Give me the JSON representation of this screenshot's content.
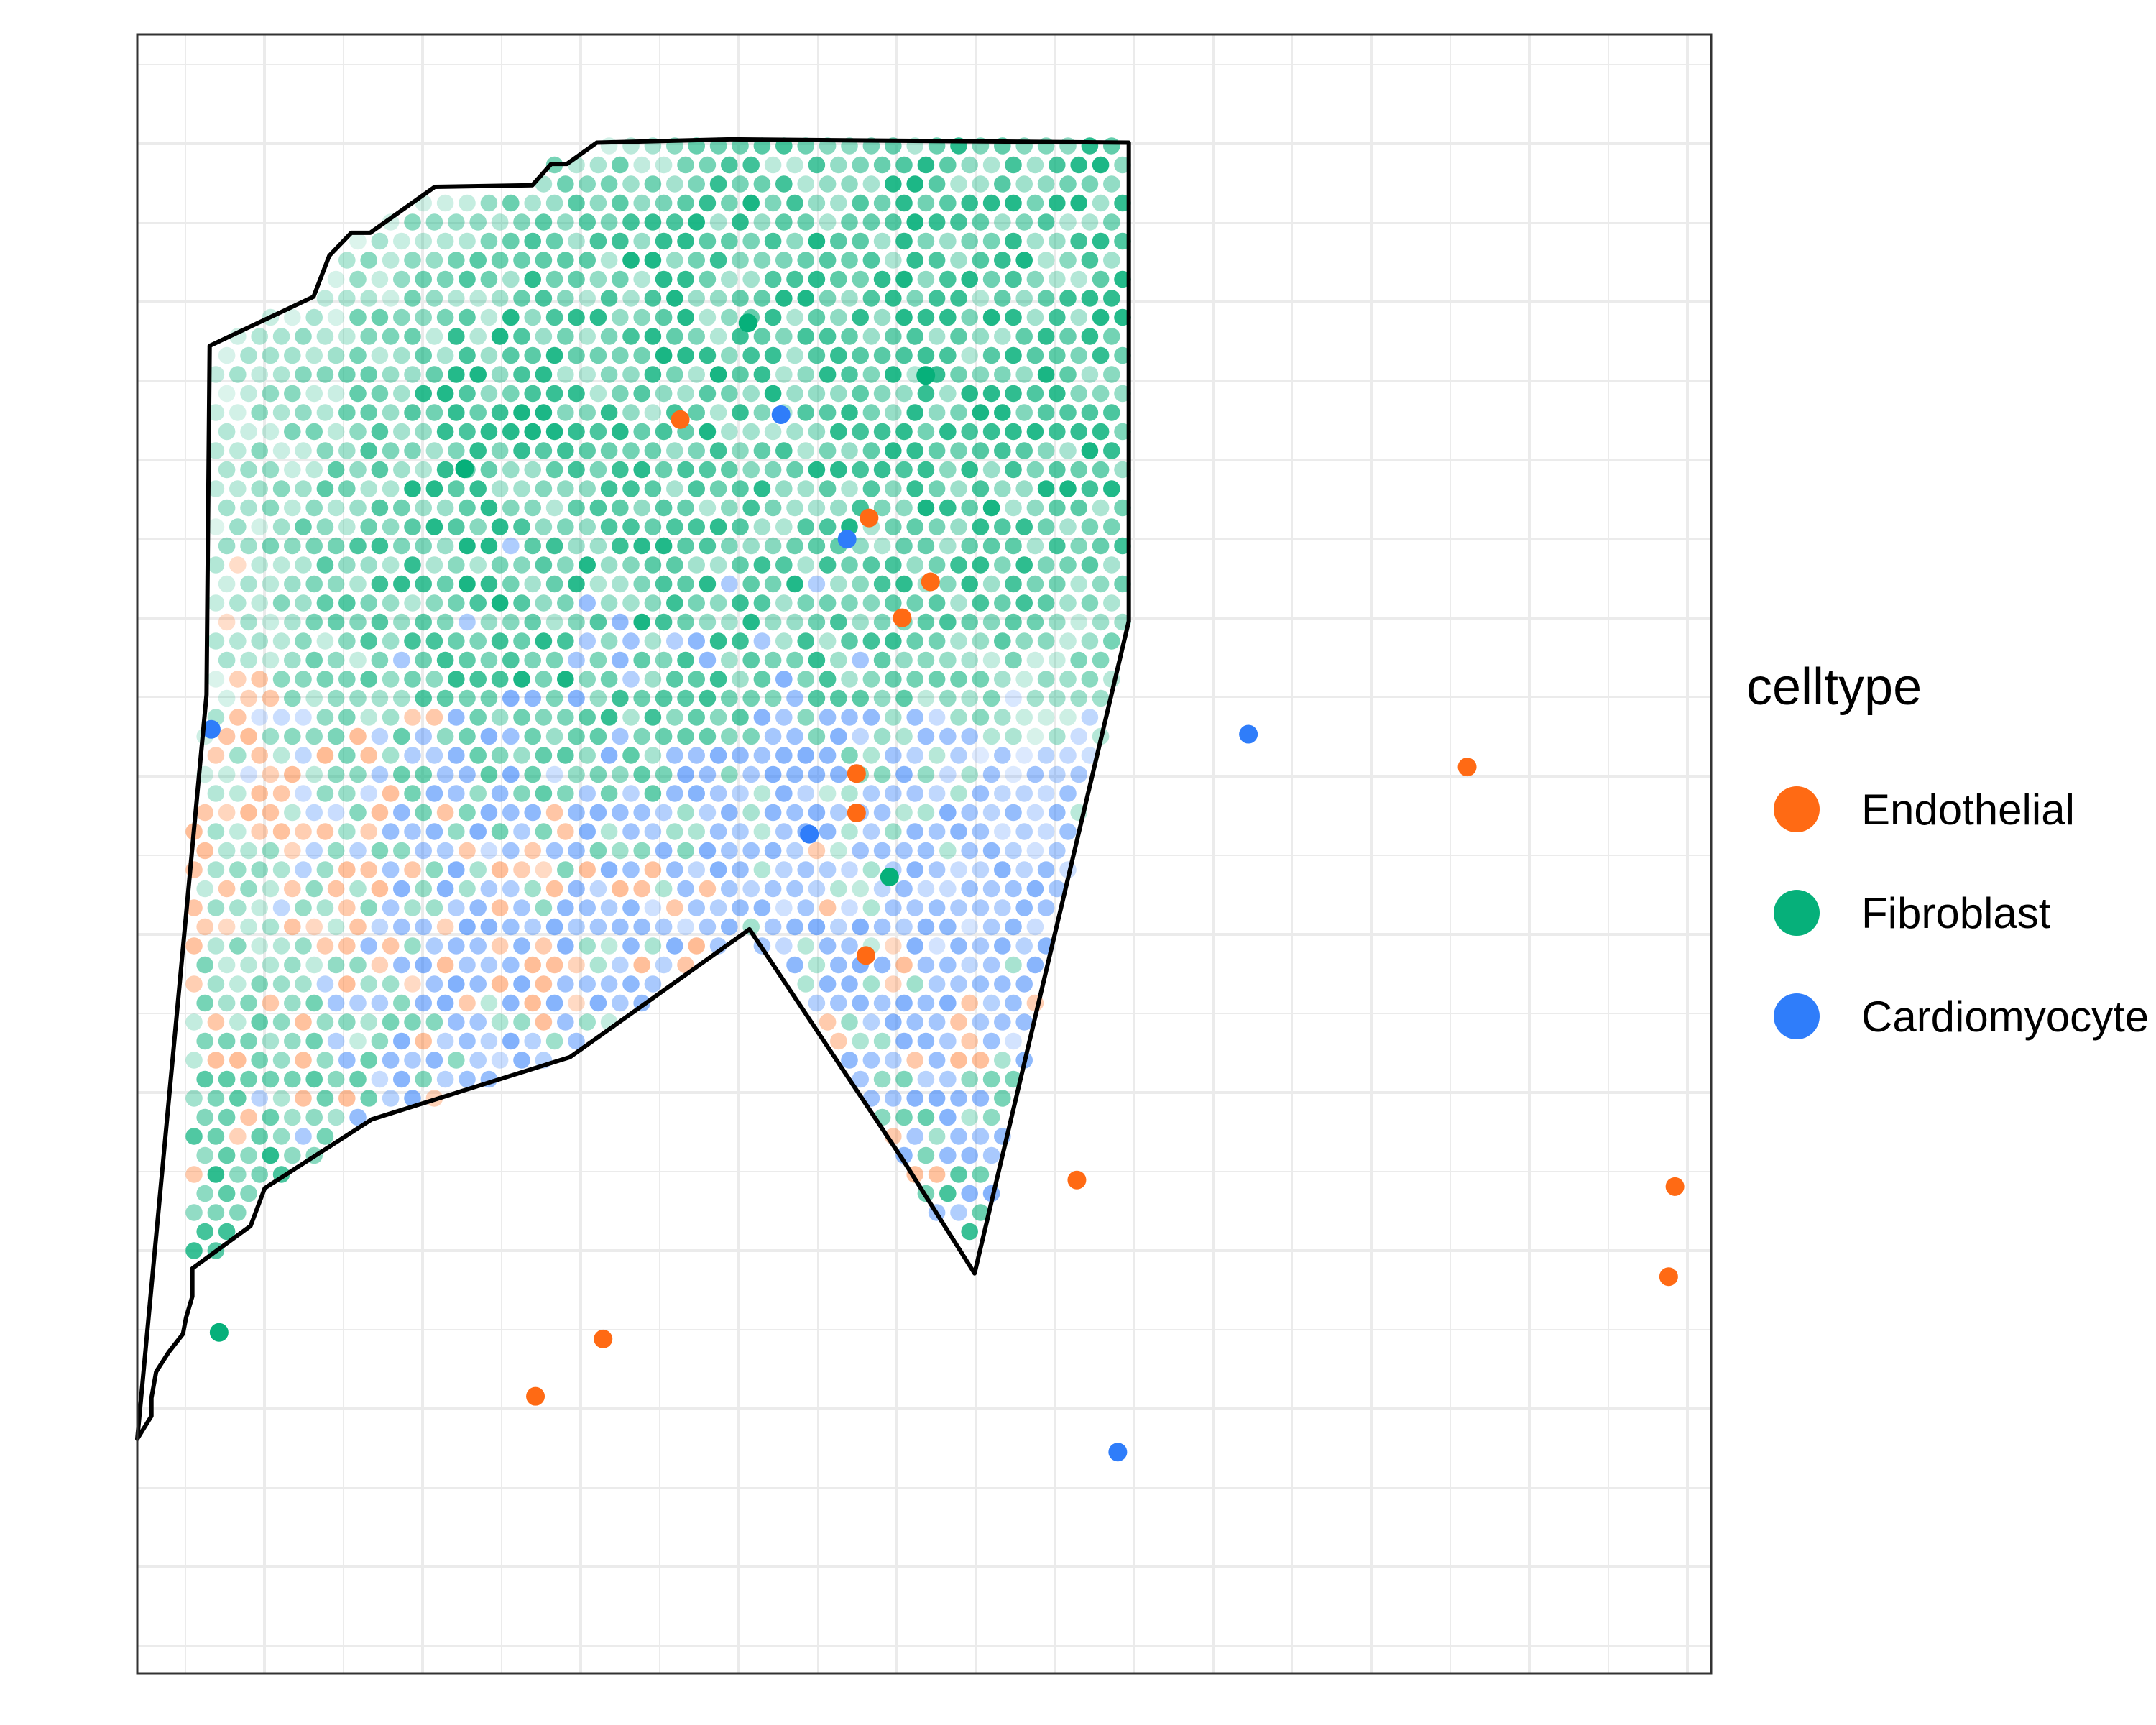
{
  "chart_data": {
    "type": "scatter",
    "title": "",
    "xlabel": "",
    "ylabel": "",
    "xlim": [
      0,
      100
    ],
    "ylim": [
      0,
      100
    ],
    "grid": true,
    "axis_text": false,
    "legend_position": "right",
    "legend": {
      "title": "celltype",
      "entries": [
        {
          "label": "Endothelial",
          "color": "#FF6A14"
        },
        {
          "label": "Fibroblast",
          "color": "#06B07A"
        },
        {
          "label": "Cardiomyocyte",
          "color": "#2F7DFA"
        }
      ]
    },
    "tissue_outline": [
      [
        4.4,
        40.3
      ],
      [
        4.6,
        19.0
      ],
      [
        11.2,
        16.0
      ],
      [
        12.2,
        13.5
      ],
      [
        13.6,
        12.1
      ],
      [
        14.8,
        12.1
      ],
      [
        18.9,
        9.3
      ],
      [
        25.1,
        9.2
      ],
      [
        26.3,
        7.9
      ],
      [
        27.3,
        7.9
      ],
      [
        29.2,
        6.6
      ],
      [
        37.7,
        6.4
      ],
      [
        63.0,
        6.6
      ],
      [
        63.0,
        35.8
      ],
      [
        53.2,
        75.6
      ],
      [
        48.6,
        68.6
      ],
      [
        38.9,
        54.6
      ],
      [
        27.5,
        62.4
      ],
      [
        14.9,
        66.2
      ],
      [
        8.1,
        70.4
      ],
      [
        7.2,
        72.7
      ],
      [
        3.5,
        75.3
      ],
      [
        3.5,
        77.0
      ],
      [
        3.1,
        78.3
      ],
      [
        2.9,
        79.3
      ],
      [
        2.0,
        80.4
      ],
      [
        1.2,
        81.6
      ],
      [
        0.9,
        83.2
      ],
      [
        0.9,
        84.3
      ],
      [
        0.0,
        85.7
      ]
    ],
    "density": {
      "Fibroblast": {
        "centers": [
          [
            75,
            85
          ],
          [
            48,
            80
          ],
          [
            25,
            70
          ],
          [
            55,
            20
          ],
          [
            5,
            25
          ],
          [
            92,
            10
          ]
        ],
        "alpha_max": 0.85
      },
      "Cardiomyocyte": {
        "centers": [
          [
            30,
            55
          ],
          [
            40,
            35
          ],
          [
            70,
            35
          ],
          [
            25,
            20
          ],
          [
            85,
            30
          ],
          [
            60,
            10
          ]
        ],
        "alpha_max": 0.55
      },
      "Endothelial": {
        "centers": [
          [
            15,
            25
          ],
          [
            30,
            15
          ],
          [
            45,
            35
          ],
          [
            90,
            30
          ],
          [
            8,
            50
          ]
        ],
        "alpha_max": 0.45
      }
    },
    "highlighted_spots": [
      {
        "celltype": "Endothelial",
        "x": 34.5,
        "y": 76.5
      },
      {
        "celltype": "Endothelial",
        "x": 46.5,
        "y": 70.5
      },
      {
        "celltype": "Endothelial",
        "x": 50.4,
        "y": 66.6
      },
      {
        "celltype": "Endothelial",
        "x": 48.6,
        "y": 64.4
      },
      {
        "celltype": "Endothelial",
        "x": 84.5,
        "y": 55.3
      },
      {
        "celltype": "Endothelial",
        "x": 46.3,
        "y": 43.8
      },
      {
        "celltype": "Endothelial",
        "x": 29.6,
        "y": 20.4
      },
      {
        "celltype": "Endothelial",
        "x": 25.3,
        "y": 16.9
      },
      {
        "celltype": "Endothelial",
        "x": 59.7,
        "y": 30.1
      },
      {
        "celltype": "Endothelial",
        "x": 97.7,
        "y": 29.7
      },
      {
        "celltype": "Endothelial",
        "x": 97.3,
        "y": 24.2
      },
      {
        "celltype": "Endothelial",
        "x": 45.7,
        "y": 52.5
      },
      {
        "celltype": "Endothelial",
        "x": 45.7,
        "y": 54.9
      },
      {
        "celltype": "Fibroblast",
        "x": 38.8,
        "y": 82.4
      },
      {
        "celltype": "Fibroblast",
        "x": 50.1,
        "y": 79.2
      },
      {
        "celltype": "Fibroblast",
        "x": 20.8,
        "y": 73.5
      },
      {
        "celltype": "Fibroblast",
        "x": 47.8,
        "y": 48.6
      },
      {
        "celltype": "Fibroblast",
        "x": 5.2,
        "y": 20.8
      },
      {
        "celltype": "Cardiomyocyte",
        "x": 40.9,
        "y": 76.8
      },
      {
        "celltype": "Cardiomyocyte",
        "x": 45.1,
        "y": 69.2
      },
      {
        "celltype": "Cardiomyocyte",
        "x": 70.6,
        "y": 57.3
      },
      {
        "celltype": "Cardiomyocyte",
        "x": 42.7,
        "y": 51.2
      },
      {
        "celltype": "Cardiomyocyte",
        "x": 62.3,
        "y": 13.5
      },
      {
        "celltype": "Cardiomyocyte",
        "x": 4.7,
        "y": 57.6
      }
    ]
  }
}
